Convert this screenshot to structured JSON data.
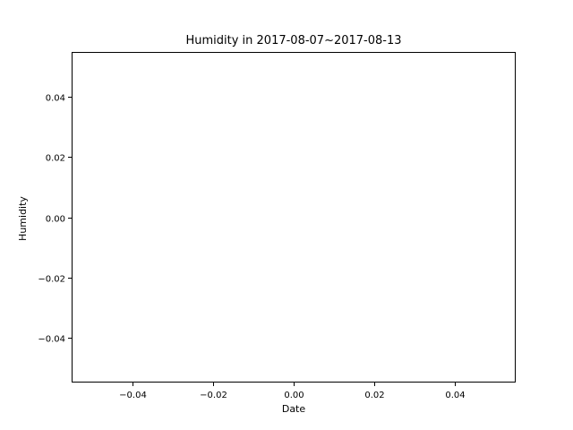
{
  "chart_data": {
    "type": "line",
    "title": "Humidity in 2017-08-07~2017-08-13",
    "xlabel": "Date",
    "ylabel": "Humidity",
    "xlim": [
      -0.055,
      0.055
    ],
    "ylim": [
      -0.055,
      0.055
    ],
    "xticks": [
      -0.04,
      -0.02,
      0.0,
      0.02,
      0.04
    ],
    "xtick_labels": [
      "−0.04",
      "−0.02",
      "0.00",
      "0.02",
      "0.04"
    ],
    "yticks": [
      -0.04,
      -0.02,
      0.0,
      0.02,
      0.04
    ],
    "ytick_labels": [
      "−0.04",
      "−0.02",
      "0.00",
      "0.02",
      "0.04"
    ],
    "grid": false,
    "series": []
  }
}
